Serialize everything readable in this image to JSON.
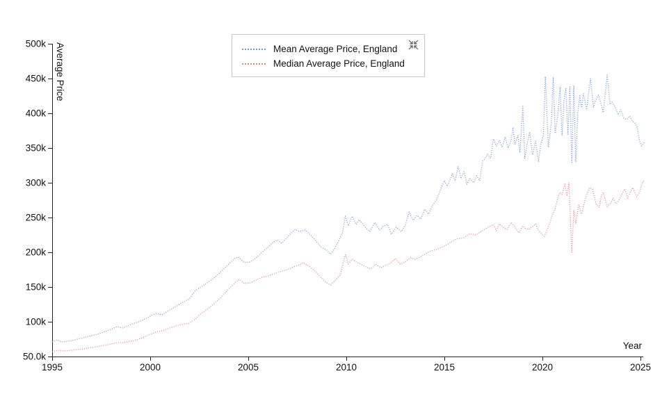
{
  "page": {
    "background": "#ffffff"
  },
  "legend": {
    "items": [
      {
        "label": "Mean Average Price, England",
        "color": "#7494d6",
        "style": "dotted"
      },
      {
        "label": "Median Average Price, England",
        "color": "#e28383",
        "style": "dotted"
      }
    ],
    "collapse_icon": "collapse-arrows-icon",
    "icon_color": "#555555"
  },
  "axes": {
    "y": {
      "title": "Average Price",
      "tick_labels": [
        "50.0k",
        "100k",
        "150k",
        "200k",
        "250k",
        "300k",
        "350k",
        "400k",
        "450k",
        "500k"
      ],
      "tick_values": [
        50,
        100,
        150,
        200,
        250,
        300,
        350,
        400,
        450,
        500
      ]
    },
    "x": {
      "title": "Year",
      "tick_labels": [
        "1995",
        "2000",
        "2005",
        "2010",
        "2015",
        "2020",
        "2025"
      ],
      "tick_values": [
        1995,
        2000,
        2005,
        2010,
        2015,
        2020,
        2025
      ]
    },
    "axis_color": "#222222"
  },
  "chart_data": {
    "type": "line",
    "title": "",
    "xlabel": "Year",
    "ylabel": "Average Price",
    "xlim": [
      1995,
      2025.3
    ],
    "ylim_thousands": [
      50,
      500
    ],
    "values_unit": "GBP thousands",
    "line_style": "dotted",
    "grid": false,
    "legend_position": "top-center-inside",
    "series": [
      {
        "name": "Mean Average Price, England",
        "color": "#7494d6",
        "x": [
          1995.0,
          1995.25,
          1995.5,
          1995.75,
          1996.0,
          1996.3,
          1996.6,
          1997.0,
          1997.3,
          1997.6,
          1998.0,
          1998.3,
          1998.6,
          1999.0,
          1999.3,
          1999.6,
          2000.0,
          2000.3,
          2000.6,
          2001.0,
          2001.3,
          2001.6,
          2002.0,
          2002.3,
          2002.6,
          2003.0,
          2003.3,
          2003.6,
          2004.0,
          2004.3,
          2004.5,
          2004.8,
          2005.1,
          2005.4,
          2005.7,
          2006.0,
          2006.3,
          2006.5,
          2006.7,
          2007.0,
          2007.2,
          2007.4,
          2007.6,
          2007.9,
          2008.1,
          2008.4,
          2008.7,
          2009.0,
          2009.2,
          2009.4,
          2009.6,
          2009.8,
          2009.95,
          2010.1,
          2010.3,
          2010.5,
          2010.65,
          2010.8,
          2011.0,
          2011.2,
          2011.45,
          2011.7,
          2011.9,
          2012.1,
          2012.3,
          2012.55,
          2012.8,
          2013.0,
          2013.2,
          2013.4,
          2013.6,
          2013.8,
          2014.0,
          2014.2,
          2014.4,
          2014.6,
          2014.8,
          2015.0,
          2015.15,
          2015.4,
          2015.55,
          2015.7,
          2015.85,
          2016.0,
          2016.15,
          2016.3,
          2016.5,
          2016.65,
          2016.8,
          2016.95,
          2017.1,
          2017.2,
          2017.35,
          2017.5,
          2017.65,
          2017.8,
          2017.95,
          2018.1,
          2018.25,
          2018.4,
          2018.5,
          2018.6,
          2018.75,
          2018.85,
          2019.0,
          2019.1,
          2019.25,
          2019.35,
          2019.5,
          2019.65,
          2019.8,
          2019.9,
          2020.05,
          2020.15,
          2020.3,
          2020.45,
          2020.55,
          2020.65,
          2020.8,
          2020.9,
          2021.0,
          2021.1,
          2021.2,
          2021.3,
          2021.4,
          2021.5,
          2021.6,
          2021.7,
          2021.8,
          2021.9,
          2022.0,
          2022.1,
          2022.25,
          2022.45,
          2022.6,
          2022.7,
          2022.85,
          2023.0,
          2023.1,
          2023.3,
          2023.45,
          2023.55,
          2023.7,
          2023.85,
          2024.0,
          2024.15,
          2024.3,
          2024.45,
          2024.6,
          2024.75,
          2024.85,
          2024.95,
          2025.05,
          2025.2
        ],
        "values": [
          71,
          74,
          71,
          72,
          73,
          75,
          77,
          80,
          82,
          85,
          89,
          93,
          91,
          96,
          99,
          102,
          108,
          112,
          110,
          117,
          122,
          127,
          133,
          145,
          150,
          158,
          164,
          172,
          183,
          191,
          193,
          185,
          186,
          192,
          200,
          207,
          215,
          218,
          213,
          222,
          228,
          233,
          230,
          232,
          227,
          218,
          208,
          203,
          197,
          205,
          216,
          228,
          252,
          238,
          252,
          240,
          247,
          242,
          235,
          230,
          243,
          232,
          238,
          240,
          226,
          236,
          230,
          238,
          258,
          246,
          253,
          248,
          262,
          255,
          268,
          275,
          290,
          303,
          295,
          313,
          303,
          323,
          306,
          316,
          298,
          306,
          300,
          310,
          303,
          331,
          336,
          341,
          335,
          363,
          353,
          361,
          351,
          366,
          350,
          361,
          380,
          355,
          368,
          343,
          410,
          335,
          360,
          373,
          340,
          360,
          330,
          353,
          368,
          453,
          351,
          385,
          452,
          371,
          401,
          438,
          368,
          418,
          436,
          370,
          438,
          328,
          440,
          330,
          400,
          425,
          408,
          428,
          405,
          450,
          408,
          418,
          426,
          412,
          401,
          455,
          413,
          416,
          410,
          398,
          405,
          393,
          391,
          396,
          388,
          385,
          378,
          360,
          353,
          358
        ]
      },
      {
        "name": "Median Average Price, England",
        "color": "#e28383",
        "x": [
          1995.0,
          1995.3,
          1995.6,
          1996.0,
          1996.3,
          1996.6,
          1997.0,
          1997.3,
          1997.6,
          1998.0,
          1998.3,
          1998.6,
          1999.0,
          1999.3,
          1999.6,
          2000.0,
          2000.3,
          2000.6,
          2001.0,
          2001.3,
          2001.6,
          2002.0,
          2002.3,
          2002.6,
          2003.0,
          2003.3,
          2003.6,
          2004.0,
          2004.3,
          2004.55,
          2004.8,
          2005.1,
          2005.4,
          2005.7,
          2006.0,
          2006.3,
          2006.6,
          2007.0,
          2007.3,
          2007.6,
          2007.8,
          2008.1,
          2008.4,
          2008.7,
          2009.0,
          2009.2,
          2009.45,
          2009.7,
          2009.95,
          2010.1,
          2010.3,
          2010.5,
          2010.75,
          2011.0,
          2011.25,
          2011.5,
          2011.75,
          2012.0,
          2012.25,
          2012.5,
          2012.75,
          2013.0,
          2013.25,
          2013.5,
          2013.75,
          2014.0,
          2014.3,
          2014.6,
          2015.0,
          2015.3,
          2015.6,
          2016.0,
          2016.3,
          2016.6,
          2017.0,
          2017.3,
          2017.5,
          2017.65,
          2017.8,
          2018.0,
          2018.2,
          2018.4,
          2018.6,
          2018.8,
          2019.0,
          2019.15,
          2019.3,
          2019.5,
          2019.65,
          2019.8,
          2020.0,
          2020.1,
          2020.35,
          2020.5,
          2020.65,
          2020.8,
          2020.9,
          2021.0,
          2021.15,
          2021.25,
          2021.35,
          2021.5,
          2021.6,
          2021.7,
          2021.85,
          2022.0,
          2022.2,
          2022.4,
          2022.55,
          2022.75,
          2022.9,
          2023.0,
          2023.1,
          2023.3,
          2023.5,
          2023.6,
          2023.75,
          2023.9,
          2024.1,
          2024.2,
          2024.35,
          2024.5,
          2024.6,
          2024.8,
          2024.95,
          2025.1,
          2025.2
        ],
        "values": [
          57,
          59,
          58,
          59,
          60,
          61,
          63,
          64,
          66,
          68,
          70,
          70,
          72,
          74,
          77,
          82,
          85,
          87,
          91,
          94,
          96,
          98,
          104,
          112,
          120,
          127,
          135,
          147,
          156,
          161,
          155,
          156,
          160,
          164,
          166,
          169,
          172,
          175,
          179,
          182,
          185,
          180,
          173,
          164,
          156,
          153,
          160,
          168,
          197,
          183,
          190,
          186,
          183,
          179,
          176,
          183,
          178,
          181,
          184,
          191,
          183,
          186,
          192,
          190,
          193,
          197,
          202,
          204,
          209,
          214,
          219,
          221,
          227,
          225,
          232,
          237,
          240,
          231,
          241,
          236,
          233,
          243,
          236,
          228,
          238,
          234,
          233,
          237,
          241,
          231,
          225,
          223,
          240,
          253,
          263,
          280,
          286,
          283,
          298,
          281,
          300,
          200,
          261,
          241,
          268,
          255,
          278,
          293,
          291,
          268,
          265,
          281,
          286,
          266,
          271,
          278,
          270,
          275,
          286,
          291,
          278,
          288,
          293,
          280,
          286,
          301,
          303
        ]
      }
    ]
  }
}
